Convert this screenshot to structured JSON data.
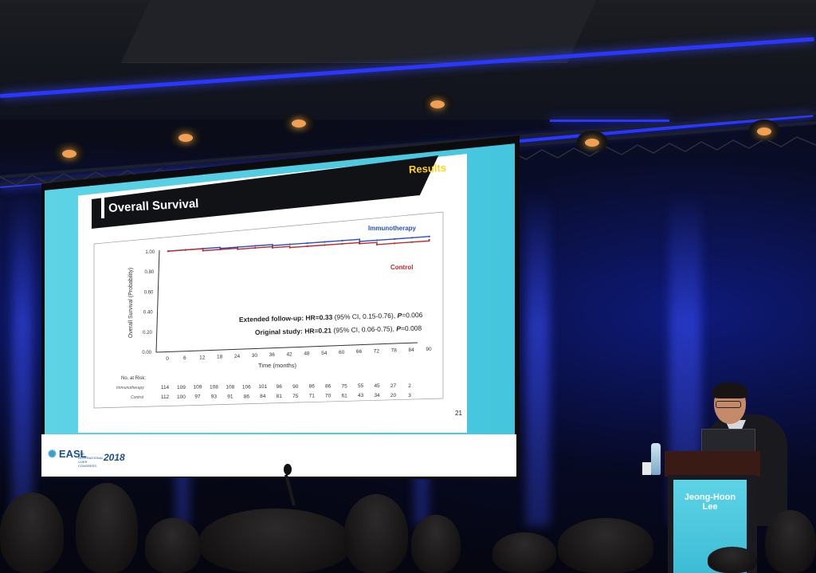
{
  "slide": {
    "section_label": "Results",
    "title": "Overall Survival",
    "slide_number": "21"
  },
  "annotations": {
    "extended_prefix": "Extended follow-up: HR=0.33 ",
    "extended_ci": "(95% CI, 0.15-0.76), ",
    "extended_p_label": "P",
    "extended_p_value": "=0.006",
    "original_prefix": "Original study: HR=0.21 ",
    "original_ci": "(95% CI, 0.06-0.75), ",
    "original_p_label": "P",
    "original_p_value": "=0.008"
  },
  "risk_table": {
    "header": "No. at Risk:",
    "rows": [
      {
        "label": "Immunotherapy",
        "values": [
          "114",
          "109",
          "109",
          "108",
          "108",
          "106",
          "101",
          "96",
          "90",
          "86",
          "86",
          "75",
          "55",
          "45",
          "27",
          "2"
        ]
      },
      {
        "label": "Control",
        "values": [
          "112",
          "100",
          "97",
          "93",
          "91",
          "86",
          "84",
          "81",
          "75",
          "71",
          "70",
          "61",
          "43",
          "34",
          "20",
          "3"
        ]
      }
    ]
  },
  "chart_data": {
    "type": "line",
    "xlabel": "Time (months)",
    "ylabel": "Overall Survival (Probability)",
    "x_ticks": [
      "0",
      "6",
      "12",
      "18",
      "24",
      "30",
      "36",
      "42",
      "48",
      "54",
      "60",
      "66",
      "72",
      "78",
      "84",
      "90"
    ],
    "y_ticks": [
      "1.00",
      "0.80",
      "0.60",
      "0.40",
      "0.20",
      "0.00"
    ],
    "xlim": [
      0,
      90
    ],
    "ylim": [
      0,
      1
    ],
    "series": [
      {
        "name": "Immunotherapy",
        "color": "#2b4fc9",
        "x": [
          0,
          6,
          12,
          18,
          24,
          30,
          36,
          42,
          48,
          54,
          60,
          66,
          72,
          78,
          84,
          90
        ],
        "y": [
          1.0,
          1.0,
          1.0,
          0.99,
          0.99,
          0.99,
          0.98,
          0.98,
          0.98,
          0.98,
          0.98,
          0.96,
          0.96,
          0.96,
          0.96,
          0.96
        ]
      },
      {
        "name": "Control",
        "color": "#c0282a",
        "x": [
          0,
          6,
          12,
          18,
          24,
          30,
          36,
          42,
          48,
          54,
          60,
          66,
          72,
          78,
          84,
          90
        ],
        "y": [
          1.0,
          1.0,
          0.98,
          0.98,
          0.97,
          0.97,
          0.96,
          0.95,
          0.95,
          0.95,
          0.95,
          0.94,
          0.92,
          0.92,
          0.92,
          0.93
        ]
      }
    ]
  },
  "logo": {
    "brand": "EASL",
    "congress_text": "THE INTERNATIONAL LIVER CONGRESS",
    "year": "2018"
  },
  "podium_sign": {
    "first_name": "Jeong-Hoon",
    "last_name": "Lee"
  }
}
